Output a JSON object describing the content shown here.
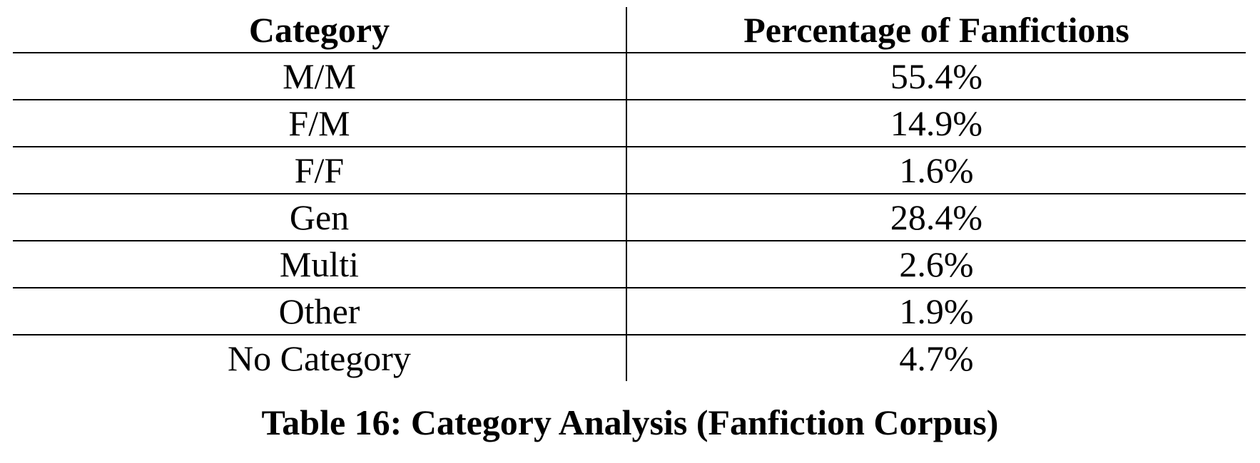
{
  "table": {
    "headers": [
      "Category",
      "Percentage of Fanfictions"
    ],
    "rows": [
      [
        "M/M",
        "55.4%"
      ],
      [
        "F/M",
        "14.9%"
      ],
      [
        "F/F",
        "1.6%"
      ],
      [
        "Gen",
        "28.4%"
      ],
      [
        "Multi",
        "2.6%"
      ],
      [
        "Other",
        "1.9%"
      ],
      [
        "No Category",
        "4.7%"
      ]
    ]
  },
  "caption": "Table 16: Category Analysis (Fanfiction Corpus)"
}
